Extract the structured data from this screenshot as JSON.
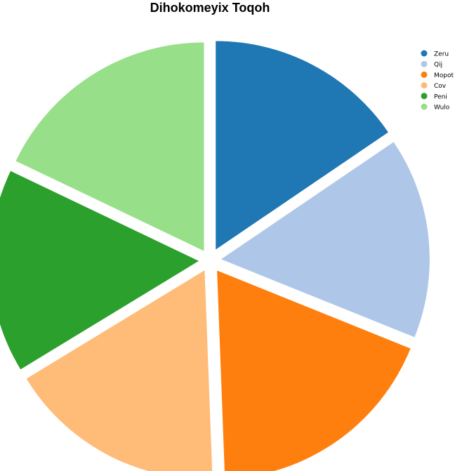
{
  "chart_data": {
    "type": "pie",
    "title": "Dihokomeyix Toqoh",
    "categories": [
      "Zeru",
      "Qij",
      "Mopot",
      "Cov",
      "Peni",
      "Wulo"
    ],
    "values": [
      15.5,
      15.6,
      18.3,
      16.9,
      15.8,
      17.9
    ],
    "colors": [
      "#1f77b4",
      "#aec7e8",
      "#ff7f0e",
      "#ffbb78",
      "#2ca02c",
      "#98df8a"
    ],
    "start_angle_deg": 90,
    "direction": "clockwise",
    "exploded": true,
    "legend": {
      "position": "top-right",
      "entries": [
        "Zeru",
        "Qij",
        "Mopot",
        "Cov",
        "Peni",
        "Wulo"
      ]
    }
  }
}
